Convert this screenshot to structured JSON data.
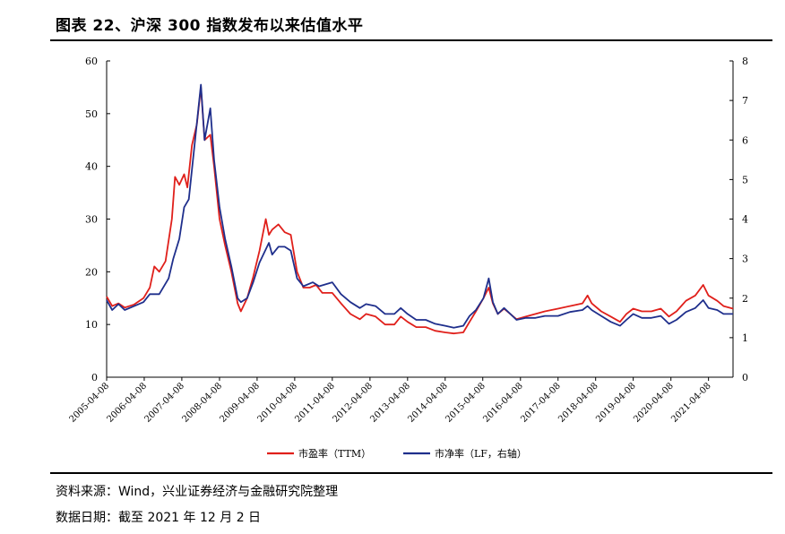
{
  "title": "图表 22、沪深 300 指数发布以来估值水平",
  "source": "资料来源：Wind，兴业证券经济与金融研究院整理",
  "date_line": "数据日期：截至 2021 年 12 月 2 日",
  "chart_data": {
    "type": "line",
    "x_ticks": [
      "2005-04-08",
      "2006-04-08",
      "2007-04-08",
      "2008-04-08",
      "2009-04-08",
      "2010-04-08",
      "2011-04-08",
      "2012-04-08",
      "2013-04-08",
      "2014-04-08",
      "2015-04-08",
      "2016-04-08",
      "2017-04-08",
      "2018-04-08",
      "2019-04-08",
      "2020-04-08",
      "2021-04-08"
    ],
    "ylim_left": [
      0,
      60
    ],
    "yticks_left": [
      0,
      10,
      20,
      30,
      40,
      50,
      60
    ],
    "ylim_right": [
      0,
      8
    ],
    "yticks_right": [
      0,
      1,
      2,
      3,
      4,
      5,
      6,
      7,
      8
    ],
    "x_start": "2005-04-08",
    "x_end": "2021-12-02",
    "legend_position": "bottom",
    "grid": false,
    "series": [
      {
        "name": "市盈率（TTM）",
        "axis": "left",
        "color": "#e0201b",
        "points": [
          [
            "2005-04-08",
            15.3
          ],
          [
            "2005-06-01",
            13.5
          ],
          [
            "2005-08-01",
            14.0
          ],
          [
            "2005-10-01",
            13.2
          ],
          [
            "2006-01-01",
            13.8
          ],
          [
            "2006-04-01",
            15.0
          ],
          [
            "2006-06-01",
            17.0
          ],
          [
            "2006-07-15",
            21.0
          ],
          [
            "2006-09-01",
            20.0
          ],
          [
            "2006-11-01",
            22.0
          ],
          [
            "2007-01-01",
            30.0
          ],
          [
            "2007-02-01",
            38.0
          ],
          [
            "2007-03-15",
            36.5
          ],
          [
            "2007-05-01",
            38.5
          ],
          [
            "2007-06-01",
            36.0
          ],
          [
            "2007-07-15",
            44.0
          ],
          [
            "2007-09-01",
            48.0
          ],
          [
            "2007-10-10",
            55.0
          ],
          [
            "2007-11-15",
            45.0
          ],
          [
            "2008-01-10",
            46.0
          ],
          [
            "2008-02-15",
            40.0
          ],
          [
            "2008-04-08",
            30.0
          ],
          [
            "2008-06-01",
            25.0
          ],
          [
            "2008-08-01",
            20.0
          ],
          [
            "2008-10-01",
            14.0
          ],
          [
            "2008-11-01",
            12.5
          ],
          [
            "2009-01-01",
            15.0
          ],
          [
            "2009-03-01",
            19.0
          ],
          [
            "2009-05-01",
            24.0
          ],
          [
            "2009-07-01",
            30.0
          ],
          [
            "2009-08-01",
            27.0
          ],
          [
            "2009-09-01",
            28.0
          ],
          [
            "2009-11-01",
            29.0
          ],
          [
            "2010-01-01",
            27.5
          ],
          [
            "2010-03-01",
            27.0
          ],
          [
            "2010-05-01",
            20.0
          ],
          [
            "2010-07-01",
            17.0
          ],
          [
            "2010-09-01",
            17.0
          ],
          [
            "2010-11-01",
            17.5
          ],
          [
            "2011-01-01",
            16.0
          ],
          [
            "2011-04-08",
            16.0
          ],
          [
            "2011-07-01",
            14.0
          ],
          [
            "2011-10-01",
            12.0
          ],
          [
            "2012-01-01",
            11.0
          ],
          [
            "2012-03-01",
            12.0
          ],
          [
            "2012-06-01",
            11.5
          ],
          [
            "2012-09-01",
            10.0
          ],
          [
            "2012-12-01",
            10.0
          ],
          [
            "2013-02-01",
            11.5
          ],
          [
            "2013-04-08",
            10.5
          ],
          [
            "2013-07-01",
            9.5
          ],
          [
            "2013-10-01",
            9.5
          ],
          [
            "2014-01-01",
            8.8
          ],
          [
            "2014-04-08",
            8.5
          ],
          [
            "2014-07-01",
            8.3
          ],
          [
            "2014-10-01",
            8.5
          ],
          [
            "2014-12-01",
            10.5
          ],
          [
            "2015-02-01",
            12.5
          ],
          [
            "2015-04-15",
            15.0
          ],
          [
            "2015-06-05",
            17.0
          ],
          [
            "2015-07-15",
            14.0
          ],
          [
            "2015-09-01",
            12.0
          ],
          [
            "2015-11-01",
            13.0
          ],
          [
            "2016-01-01",
            12.0
          ],
          [
            "2016-03-01",
            11.0
          ],
          [
            "2016-06-01",
            11.5
          ],
          [
            "2016-09-01",
            12.0
          ],
          [
            "2016-12-01",
            12.5
          ],
          [
            "2017-04-08",
            13.0
          ],
          [
            "2017-08-01",
            13.5
          ],
          [
            "2017-12-01",
            14.0
          ],
          [
            "2018-01-20",
            15.5
          ],
          [
            "2018-03-01",
            14.0
          ],
          [
            "2018-06-01",
            12.5
          ],
          [
            "2018-09-01",
            11.5
          ],
          [
            "2018-12-01",
            10.5
          ],
          [
            "2019-02-01",
            12.0
          ],
          [
            "2019-04-08",
            13.0
          ],
          [
            "2019-07-01",
            12.5
          ],
          [
            "2019-10-01",
            12.5
          ],
          [
            "2020-01-01",
            13.0
          ],
          [
            "2020-03-20",
            11.5
          ],
          [
            "2020-06-01",
            12.5
          ],
          [
            "2020-09-01",
            14.5
          ],
          [
            "2020-12-01",
            15.5
          ],
          [
            "2021-02-15",
            17.5
          ],
          [
            "2021-04-08",
            15.5
          ],
          [
            "2021-07-01",
            14.5
          ],
          [
            "2021-09-01",
            13.5
          ],
          [
            "2021-12-02",
            13.0
          ]
        ]
      },
      {
        "name": "市净率（LF，右轴）",
        "axis": "right",
        "color": "#1f2f8c",
        "points": [
          [
            "2005-04-08",
            1.95
          ],
          [
            "2005-06-01",
            1.7
          ],
          [
            "2005-08-01",
            1.85
          ],
          [
            "2005-10-01",
            1.7
          ],
          [
            "2006-01-01",
            1.8
          ],
          [
            "2006-04-01",
            1.9
          ],
          [
            "2006-06-01",
            2.1
          ],
          [
            "2006-09-01",
            2.1
          ],
          [
            "2006-12-01",
            2.5
          ],
          [
            "2007-01-15",
            3.0
          ],
          [
            "2007-03-15",
            3.5
          ],
          [
            "2007-05-01",
            4.3
          ],
          [
            "2007-06-15",
            4.5
          ],
          [
            "2007-08-15",
            6.0
          ],
          [
            "2007-10-10",
            7.4
          ],
          [
            "2007-11-15",
            6.0
          ],
          [
            "2008-01-10",
            6.8
          ],
          [
            "2008-02-15",
            5.5
          ],
          [
            "2008-04-08",
            4.3
          ],
          [
            "2008-06-01",
            3.5
          ],
          [
            "2008-08-01",
            2.8
          ],
          [
            "2008-10-01",
            2.0
          ],
          [
            "2008-11-01",
            1.9
          ],
          [
            "2009-01-01",
            2.0
          ],
          [
            "2009-03-01",
            2.4
          ],
          [
            "2009-05-01",
            2.9
          ],
          [
            "2009-08-01",
            3.4
          ],
          [
            "2009-09-01",
            3.1
          ],
          [
            "2009-11-01",
            3.3
          ],
          [
            "2010-01-01",
            3.3
          ],
          [
            "2010-03-01",
            3.2
          ],
          [
            "2010-05-01",
            2.5
          ],
          [
            "2010-07-01",
            2.3
          ],
          [
            "2010-10-01",
            2.4
          ],
          [
            "2010-12-01",
            2.3
          ],
          [
            "2011-04-08",
            2.4
          ],
          [
            "2011-07-01",
            2.1
          ],
          [
            "2011-10-01",
            1.9
          ],
          [
            "2012-01-01",
            1.75
          ],
          [
            "2012-03-01",
            1.85
          ],
          [
            "2012-06-01",
            1.8
          ],
          [
            "2012-09-01",
            1.6
          ],
          [
            "2012-12-01",
            1.6
          ],
          [
            "2013-02-01",
            1.75
          ],
          [
            "2013-04-08",
            1.6
          ],
          [
            "2013-07-01",
            1.45
          ],
          [
            "2013-10-01",
            1.45
          ],
          [
            "2014-01-01",
            1.35
          ],
          [
            "2014-04-08",
            1.3
          ],
          [
            "2014-07-01",
            1.25
          ],
          [
            "2014-10-01",
            1.3
          ],
          [
            "2014-12-01",
            1.55
          ],
          [
            "2015-02-01",
            1.7
          ],
          [
            "2015-04-15",
            2.0
          ],
          [
            "2015-06-05",
            2.5
          ],
          [
            "2015-07-15",
            1.9
          ],
          [
            "2015-09-01",
            1.6
          ],
          [
            "2015-11-01",
            1.75
          ],
          [
            "2016-01-01",
            1.6
          ],
          [
            "2016-03-01",
            1.45
          ],
          [
            "2016-06-01",
            1.5
          ],
          [
            "2016-09-01",
            1.5
          ],
          [
            "2016-12-01",
            1.55
          ],
          [
            "2017-04-08",
            1.55
          ],
          [
            "2017-08-01",
            1.65
          ],
          [
            "2017-12-01",
            1.7
          ],
          [
            "2018-01-20",
            1.8
          ],
          [
            "2018-03-01",
            1.7
          ],
          [
            "2018-06-01",
            1.55
          ],
          [
            "2018-09-01",
            1.4
          ],
          [
            "2018-12-01",
            1.3
          ],
          [
            "2019-02-01",
            1.45
          ],
          [
            "2019-04-08",
            1.6
          ],
          [
            "2019-07-01",
            1.5
          ],
          [
            "2019-10-01",
            1.5
          ],
          [
            "2020-01-01",
            1.55
          ],
          [
            "2020-03-20",
            1.35
          ],
          [
            "2020-06-01",
            1.45
          ],
          [
            "2020-09-01",
            1.65
          ],
          [
            "2020-12-01",
            1.75
          ],
          [
            "2021-02-15",
            1.95
          ],
          [
            "2021-04-08",
            1.75
          ],
          [
            "2021-07-01",
            1.7
          ],
          [
            "2021-09-01",
            1.6
          ],
          [
            "2021-12-02",
            1.6
          ]
        ]
      }
    ]
  }
}
